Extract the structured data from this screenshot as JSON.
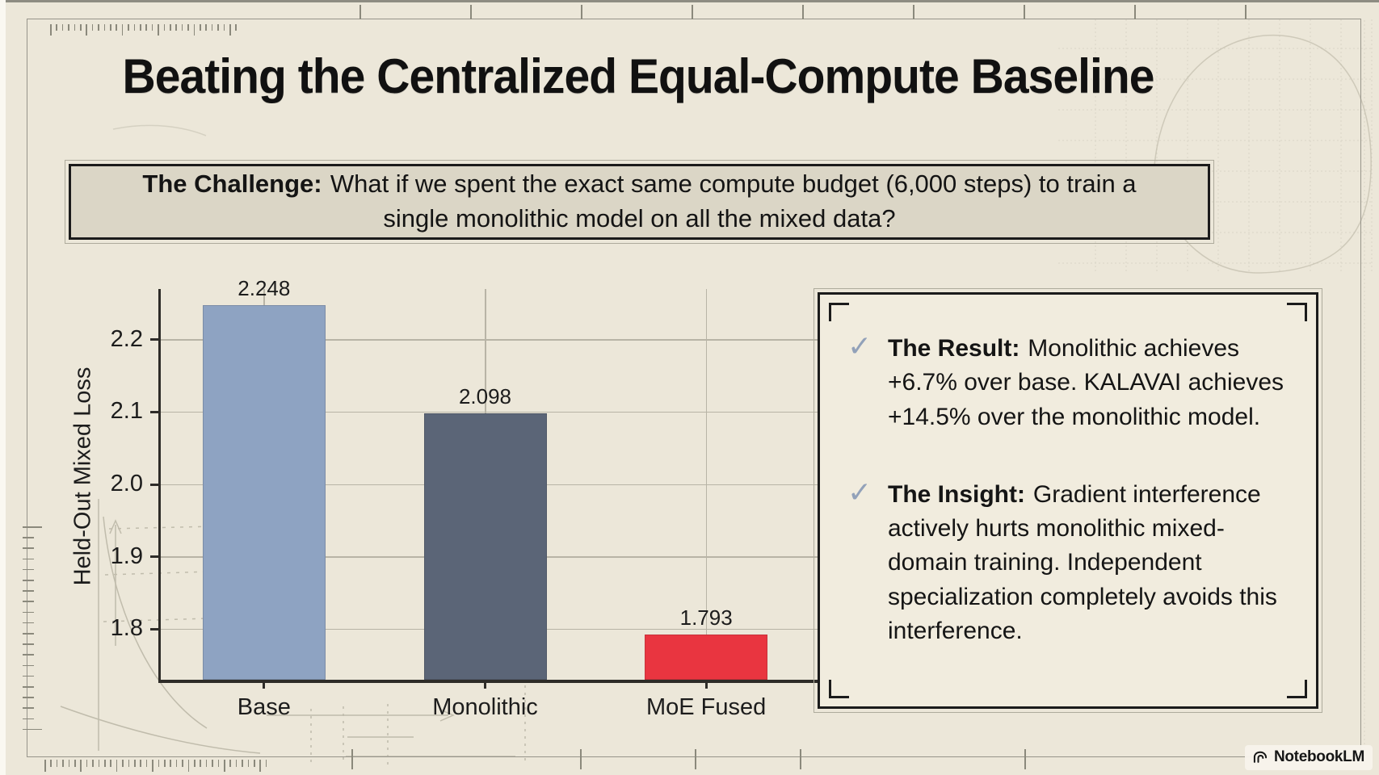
{
  "page": {
    "title": "Beating the Centralized Equal-Compute Baseline"
  },
  "challenge": {
    "label": "The Challenge:",
    "text": "What if we spent the exact same compute budget (6,000 steps) to train a single monolithic model on all the mixed data?"
  },
  "chart_data": {
    "type": "bar",
    "title": "",
    "categories": [
      "Base",
      "Monolithic",
      "MoE Fused"
    ],
    "values": [
      2.248,
      2.098,
      1.793
    ],
    "value_labels": [
      "2.248",
      "2.098",
      "1.793"
    ],
    "bar_colors": [
      "#8EA3C2",
      "#5B6577",
      "#E93540"
    ],
    "xlabel": "",
    "ylabel": "Held-Out Mixed Loss",
    "yticks": [
      1.8,
      1.9,
      2.0,
      2.1,
      2.2
    ],
    "ylim": [
      1.73,
      2.27
    ],
    "grid": true,
    "legend": "none"
  },
  "results": {
    "items": [
      {
        "icon": "check",
        "label": "The Result:",
        "text": "Monolithic achieves +6.7% over base. KALAVAI achieves +14.5% over the monolithic model."
      },
      {
        "icon": "check",
        "label": "The Insight:",
        "text": "Gradient interference actively hurts monolithic mixed-domain training. Independent specialization completely avoids this interference."
      }
    ]
  },
  "icons": {
    "check": "✓"
  },
  "branding": {
    "logo_text": "NotebookLM"
  },
  "colors": {
    "background": "#ECE7D9",
    "ink": "#1A1A1A",
    "challenge_bg": "#DBD6C6",
    "panel_bg": "#F1ECDE",
    "check": "#92A1B9",
    "grid": "#B8B4A6",
    "frame": "#96938A",
    "bar_base": "#8EA3C2",
    "bar_monolithic": "#5B6577",
    "bar_moe_fused": "#E93540"
  }
}
